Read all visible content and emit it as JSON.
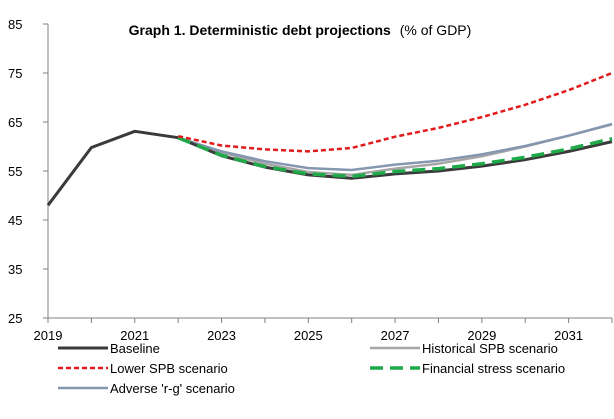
{
  "chart_data": {
    "type": "line",
    "title": "Graph 1. Deterministic debt projections",
    "subtitle": "(% of GDP)",
    "xlabel": "",
    "ylabel": "",
    "xlim": [
      2019,
      2032
    ],
    "ylim": [
      25,
      85
    ],
    "yticks": [
      25,
      35,
      45,
      55,
      65,
      75,
      85
    ],
    "xticks": [
      2019,
      2021,
      2023,
      2025,
      2027,
      2029,
      2031
    ],
    "grid": false,
    "legend_position": "bottom",
    "series": [
      {
        "name": "Baseline",
        "color": "#3a3a3a",
        "style": "solid",
        "x": [
          2019,
          2020,
          2021,
          2022,
          2023,
          2024,
          2025,
          2026,
          2027,
          2028,
          2029,
          2030,
          2031,
          2032
        ],
        "values": [
          48.0,
          59.8,
          63.1,
          61.8,
          58.1,
          55.8,
          54.2,
          53.5,
          54.4,
          55.0,
          56.0,
          57.3,
          59.0,
          61.0
        ]
      },
      {
        "name": "Historical SPB scenario",
        "color": "#a6a6a6",
        "style": "solid",
        "x": [
          2022,
          2023,
          2024,
          2025,
          2026,
          2027,
          2028,
          2029,
          2030,
          2031,
          2032
        ],
        "values": [
          61.8,
          58.8,
          56.5,
          54.8,
          54.2,
          55.5,
          56.5,
          58.0,
          60.0,
          62.2,
          64.5
        ]
      },
      {
        "name": "Lower SPB scenario",
        "color": "#e31a1c",
        "style": "dotted",
        "x": [
          2022,
          2023,
          2024,
          2025,
          2026,
          2027,
          2028,
          2029,
          2030,
          2031,
          2032
        ],
        "values": [
          62.1,
          60.2,
          59.4,
          59.0,
          59.7,
          62.0,
          63.8,
          66.0,
          68.5,
          71.5,
          75.0
        ]
      },
      {
        "name": "Financial stress scenario",
        "color": "#1faa4a",
        "style": "dashed",
        "x": [
          2022,
          2023,
          2024,
          2025,
          2026,
          2027,
          2028,
          2029,
          2030,
          2031,
          2032
        ],
        "values": [
          61.8,
          58.2,
          55.9,
          54.4,
          53.9,
          54.9,
          55.5,
          56.5,
          57.8,
          59.5,
          61.6
        ]
      },
      {
        "name": "Adverse 'r-g' scenario",
        "color": "#8496b0",
        "style": "solid",
        "x": [
          2022,
          2023,
          2024,
          2025,
          2026,
          2027,
          2028,
          2029,
          2030,
          2031,
          2032
        ],
        "values": [
          61.8,
          59.0,
          57.0,
          55.6,
          55.2,
          56.3,
          57.1,
          58.4,
          60.1,
          62.2,
          64.6
        ]
      }
    ],
    "legend": [
      {
        "label": "Baseline",
        "series": 0
      },
      {
        "label": "Historical SPB scenario",
        "series": 1
      },
      {
        "label": "Lower SPB scenario",
        "series": 2
      },
      {
        "label": "Financial stress scenario",
        "series": 3
      },
      {
        "label": "Adverse 'r-g' scenario",
        "series": 4
      }
    ]
  }
}
